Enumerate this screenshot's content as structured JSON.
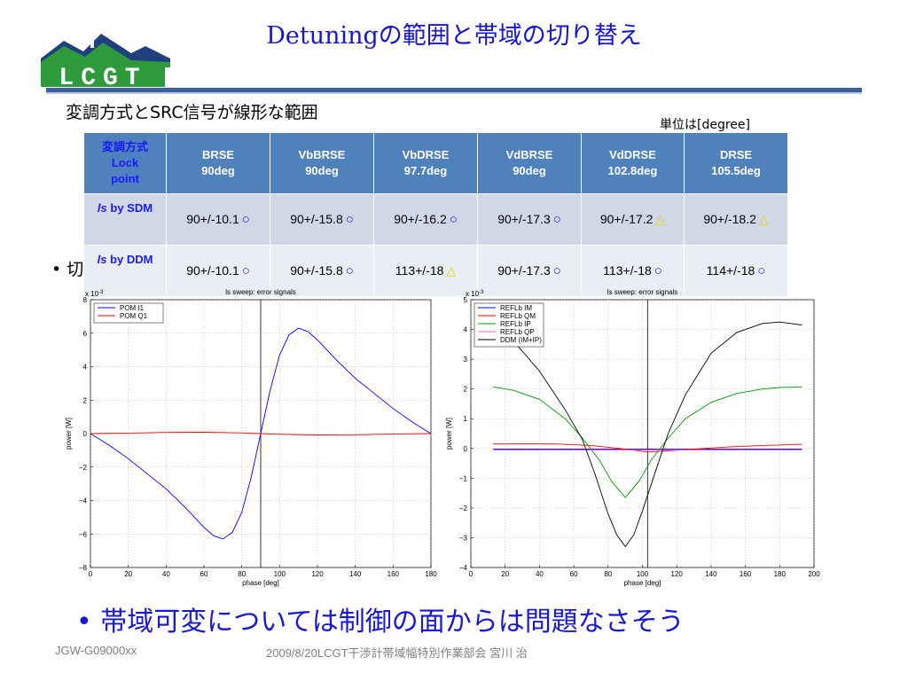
{
  "logo_text": "LCGT",
  "title": "Detuningの範囲と帯域の切り替え",
  "subtitle": "変調方式とSRC信号が線形な範囲",
  "unit_note": "単位は[degree]",
  "table": {
    "headers": [
      [
        "変調方式",
        "Lock",
        "point"
      ],
      [
        "BRSE",
        "90deg"
      ],
      [
        "VbBRSE",
        "90deg"
      ],
      [
        "VbDRSE",
        "97.7deg"
      ],
      [
        "VdBRSE",
        "90deg"
      ],
      [
        "VdDRSE",
        "102.8deg"
      ],
      [
        "DRSE",
        "105.5deg"
      ]
    ],
    "rows": [
      {
        "label_italic": "ls",
        "label_rest": " by SDM",
        "cells": [
          {
            "value": "90+/-10.1",
            "mark": "○",
            "mark_type": "circle"
          },
          {
            "value": "90+/-15.8",
            "mark": "○",
            "mark_type": "circle"
          },
          {
            "value": "90+/-16.2",
            "mark": "○",
            "mark_type": "circle"
          },
          {
            "value": "90+/-17.3",
            "mark": "○",
            "mark_type": "circle"
          },
          {
            "value": "90+/-17.2",
            "mark": "△",
            "mark_type": "triangle"
          },
          {
            "value": "90+/-18.2",
            "mark": "△",
            "mark_type": "triangle"
          }
        ]
      },
      {
        "label_italic": "ls",
        "label_rest": " by DDM",
        "cells": [
          {
            "value": "90+/-10.1",
            "mark": "○",
            "mark_type": "circle"
          },
          {
            "value": "90+/-15.8",
            "mark": "○",
            "mark_type": "circle"
          },
          {
            "value": "113+/-18",
            "mark": "△",
            "mark_type": "triangle"
          },
          {
            "value": "90+/-17.3",
            "mark": "○",
            "mark_type": "circle"
          },
          {
            "value": "113+/-18",
            "mark": "○",
            "mark_type": "circle"
          },
          {
            "value": "114+/-18",
            "mark": "○",
            "mark_type": "circle"
          }
        ]
      }
    ]
  },
  "bullet_partial": "• 切",
  "chart_data": [
    {
      "type": "line",
      "title": "ls sweep: error signals",
      "xlabel": "phase [deg]",
      "ylabel": "power [W]",
      "exponent": "x 10",
      "exponent_power": "-3",
      "xlim": [
        0,
        180
      ],
      "ylim": [
        -8,
        8
      ],
      "xticks": [
        0,
        20,
        40,
        60,
        80,
        100,
        120,
        140,
        160,
        180
      ],
      "yticks": [
        -8,
        -6,
        -4,
        -2,
        0,
        2,
        4,
        6,
        8
      ],
      "grid": true,
      "legend_position": "top-left",
      "vline_x": 90,
      "series": [
        {
          "name": "POM I1",
          "color": "#0000ff",
          "x": [
            0,
            10,
            20,
            30,
            40,
            50,
            60,
            65,
            70,
            75,
            80,
            85,
            90,
            95,
            100,
            105,
            110,
            115,
            120,
            130,
            140,
            150,
            160,
            170,
            180
          ],
          "y": [
            0,
            -0.7,
            -1.5,
            -2.4,
            -3.3,
            -4.4,
            -5.6,
            -6.1,
            -6.3,
            -5.9,
            -4.7,
            -2.6,
            0,
            2.6,
            4.7,
            5.9,
            6.3,
            6.1,
            5.6,
            4.4,
            3.3,
            2.4,
            1.5,
            0.7,
            0
          ]
        },
        {
          "name": "POM Q1",
          "color": "#ff0000",
          "x": [
            0,
            20,
            40,
            60,
            80,
            90,
            100,
            120,
            140,
            160,
            180
          ],
          "y": [
            0,
            0.03,
            0.07,
            0.08,
            0.04,
            0,
            -0.04,
            -0.08,
            -0.07,
            -0.03,
            0
          ]
        }
      ]
    },
    {
      "type": "line",
      "title": "ls sweep: error signals",
      "xlabel": "phase [deg]",
      "ylabel": "power [W]",
      "exponent": "x 10",
      "exponent_power": "-3",
      "xlim": [
        0,
        200
      ],
      "ylim": [
        -4,
        5
      ],
      "xticks": [
        0,
        20,
        40,
        60,
        80,
        100,
        120,
        140,
        160,
        180,
        200
      ],
      "yticks": [
        -4,
        -3,
        -2,
        -1,
        0,
        1,
        2,
        3,
        4,
        5
      ],
      "grid": true,
      "legend_position": "top-left",
      "vline_x": 103,
      "series": [
        {
          "name": "REFLb IM",
          "color": "#0000ff",
          "x": [
            13,
            30,
            50,
            70,
            90,
            110,
            130,
            150,
            170,
            193
          ],
          "y": [
            -0.02,
            -0.02,
            -0.02,
            -0.02,
            -0.02,
            -0.02,
            -0.02,
            -0.02,
            -0.02,
            -0.02
          ]
        },
        {
          "name": "REFLb QM",
          "color": "#ff0000",
          "x": [
            13,
            30,
            50,
            70,
            90,
            103,
            110,
            130,
            150,
            170,
            193
          ],
          "y": [
            0.15,
            0.16,
            0.15,
            0.1,
            -0.02,
            -0.12,
            -0.1,
            -0.02,
            0.05,
            0.1,
            0.14
          ]
        },
        {
          "name": "REFLb IP",
          "color": "#009900",
          "x": [
            13,
            25,
            40,
            55,
            65,
            75,
            82,
            90,
            98,
            105,
            115,
            125,
            140,
            155,
            170,
            180,
            193
          ],
          "y": [
            2.07,
            1.95,
            1.65,
            1.0,
            0.35,
            -0.4,
            -1.1,
            -1.65,
            -1.1,
            -0.4,
            0.35,
            1.0,
            1.55,
            1.85,
            2.0,
            2.05,
            2.07
          ]
        },
        {
          "name": "REFLb QP",
          "color": "#ff69b4",
          "x": [
            13,
            50,
            90,
            130,
            193
          ],
          "y": [
            -0.05,
            -0.05,
            -0.05,
            -0.05,
            -0.05
          ]
        },
        {
          "name": "DDM (IM+IP)",
          "color": "#000000",
          "x": [
            13,
            25,
            40,
            55,
            65,
            72,
            80,
            85,
            90,
            95,
            100,
            108,
            115,
            125,
            140,
            155,
            170,
            180,
            193
          ],
          "y": [
            4.2,
            3.6,
            2.6,
            1.3,
            0.3,
            -0.8,
            -2.2,
            -2.9,
            -3.3,
            -2.9,
            -2.1,
            -0.7,
            0.5,
            1.8,
            3.2,
            3.9,
            4.2,
            4.25,
            4.15
          ]
        }
      ]
    }
  ],
  "conclusion": "• 帯域可変については制御の面からは問題なさそう",
  "footer": {
    "doc_id": "JGW-G09000xx",
    "center": "2009/8/20LCGT干渉計帯域幅特別作業部会  宮川  治"
  }
}
